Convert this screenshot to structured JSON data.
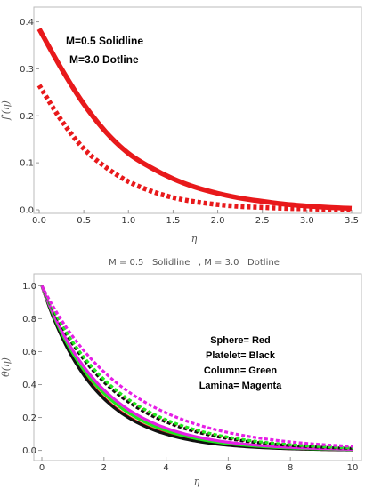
{
  "chart_data": [
    {
      "type": "line",
      "xlabel": "η",
      "ylabel": "f′(η)",
      "xlim": [
        0,
        3.55
      ],
      "ylim": [
        0,
        0.42
      ],
      "xticks": [
        "0.0",
        "0.5",
        "1.0",
        "1.5",
        "2.0",
        "2.5",
        "3.0",
        "3.5"
      ],
      "yticks": [
        "0.0",
        "0.1",
        "0.2",
        "0.3",
        "0.4"
      ],
      "annotations": [
        "M=0.5 Solidline",
        "M=3.0 Dotline"
      ],
      "series": [
        {
          "color": "#e8191b",
          "style": "solid",
          "x": [
            0,
            0.25,
            0.5,
            0.75,
            1.0,
            1.25,
            1.5,
            1.75,
            2.0,
            2.25,
            2.5,
            2.75,
            3.0,
            3.25,
            3.5
          ],
          "y": [
            0.385,
            0.3,
            0.225,
            0.165,
            0.12,
            0.09,
            0.066,
            0.048,
            0.035,
            0.025,
            0.018,
            0.012,
            0.008,
            0.005,
            0.003
          ]
        },
        {
          "color": "#e8191b",
          "style": "dotted",
          "x": [
            0,
            0.25,
            0.5,
            0.75,
            1.0,
            1.25,
            1.5,
            1.75,
            2.0,
            2.25,
            2.5,
            2.75,
            3.0,
            3.25,
            3.5
          ],
          "y": [
            0.265,
            0.19,
            0.13,
            0.09,
            0.06,
            0.04,
            0.026,
            0.017,
            0.011,
            0.007,
            0.005,
            0.003,
            0.002,
            0.001,
            0.001
          ]
        }
      ]
    },
    {
      "type": "line",
      "title": "M = 0.5   Solidline   , M = 3.0   Dotline",
      "xlabel": "η",
      "ylabel": "θ(η)",
      "xlim": [
        0,
        10
      ],
      "ylim": [
        -0.04,
        1.04
      ],
      "xticks": [
        "0",
        "2",
        "4",
        "6",
        "8",
        "10"
      ],
      "yticks": [
        "0.0",
        "0.2",
        "0.4",
        "0.6",
        "0.8",
        "1.0"
      ],
      "annotations": [
        "Sphere= Red",
        "Platelet= Black",
        "Column= Green",
        "Lamina= Magenta"
      ],
      "series": [
        {
          "color": "#e8191b",
          "style": "solid",
          "decay": 0.57,
          "x": [
            0,
            1,
            2,
            3,
            4,
            5,
            6,
            7,
            8,
            9,
            10
          ],
          "y": [
            1.0,
            0.565,
            0.32,
            0.18,
            0.1,
            0.058,
            0.033,
            0.018,
            0.01,
            0.006,
            0.003
          ]
        },
        {
          "color": "#111111",
          "style": "solid",
          "decay": 0.58,
          "x": [
            0,
            1,
            2,
            3,
            4,
            5,
            6,
            7,
            8,
            9,
            10
          ],
          "y": [
            1.0,
            0.56,
            0.313,
            0.175,
            0.098,
            0.055,
            0.031,
            0.017,
            0.01,
            0.005,
            0.003
          ]
        },
        {
          "color": "#1ee81e",
          "style": "solid",
          "decay": 0.53,
          "x": [
            0,
            1,
            2,
            3,
            4,
            5,
            6,
            7,
            8,
            9,
            10
          ],
          "y": [
            1.0,
            0.59,
            0.35,
            0.2,
            0.12,
            0.07,
            0.042,
            0.025,
            0.014,
            0.008,
            0.005
          ]
        },
        {
          "color": "#e61ee6",
          "style": "solid",
          "decay": 0.5,
          "x": [
            0,
            1,
            2,
            3,
            4,
            5,
            6,
            7,
            8,
            9,
            10
          ],
          "y": [
            1.0,
            0.61,
            0.37,
            0.22,
            0.135,
            0.082,
            0.05,
            0.03,
            0.018,
            0.011,
            0.007
          ]
        },
        {
          "color": "#e8191b",
          "style": "dotted",
          "decay": 0.43,
          "x": [
            0,
            1,
            2,
            3,
            4,
            5,
            6,
            7,
            8,
            9,
            10
          ],
          "y": [
            1.0,
            0.65,
            0.42,
            0.275,
            0.18,
            0.117,
            0.076,
            0.05,
            0.032,
            0.021,
            0.014
          ]
        },
        {
          "color": "#111111",
          "style": "dotted",
          "decay": 0.44,
          "x": [
            0,
            1,
            2,
            3,
            4,
            5,
            6,
            7,
            8,
            9,
            10
          ],
          "y": [
            1.0,
            0.645,
            0.415,
            0.267,
            0.172,
            0.11,
            0.071,
            0.046,
            0.03,
            0.019,
            0.012
          ]
        },
        {
          "color": "#1ee81e",
          "style": "dotted",
          "decay": 0.42,
          "x": [
            0,
            1,
            2,
            3,
            4,
            5,
            6,
            7,
            8,
            9,
            10
          ],
          "y": [
            1.0,
            0.657,
            0.432,
            0.284,
            0.186,
            0.123,
            0.08,
            0.053,
            0.035,
            0.023,
            0.015
          ]
        },
        {
          "color": "#e61ee6",
          "style": "dotted",
          "decay": 0.37,
          "x": [
            0,
            1,
            2,
            3,
            4,
            5,
            6,
            7,
            8,
            9,
            10
          ],
          "y": [
            1.0,
            0.69,
            0.477,
            0.33,
            0.228,
            0.157,
            0.108,
            0.075,
            0.052,
            0.036,
            0.025
          ]
        }
      ]
    }
  ]
}
